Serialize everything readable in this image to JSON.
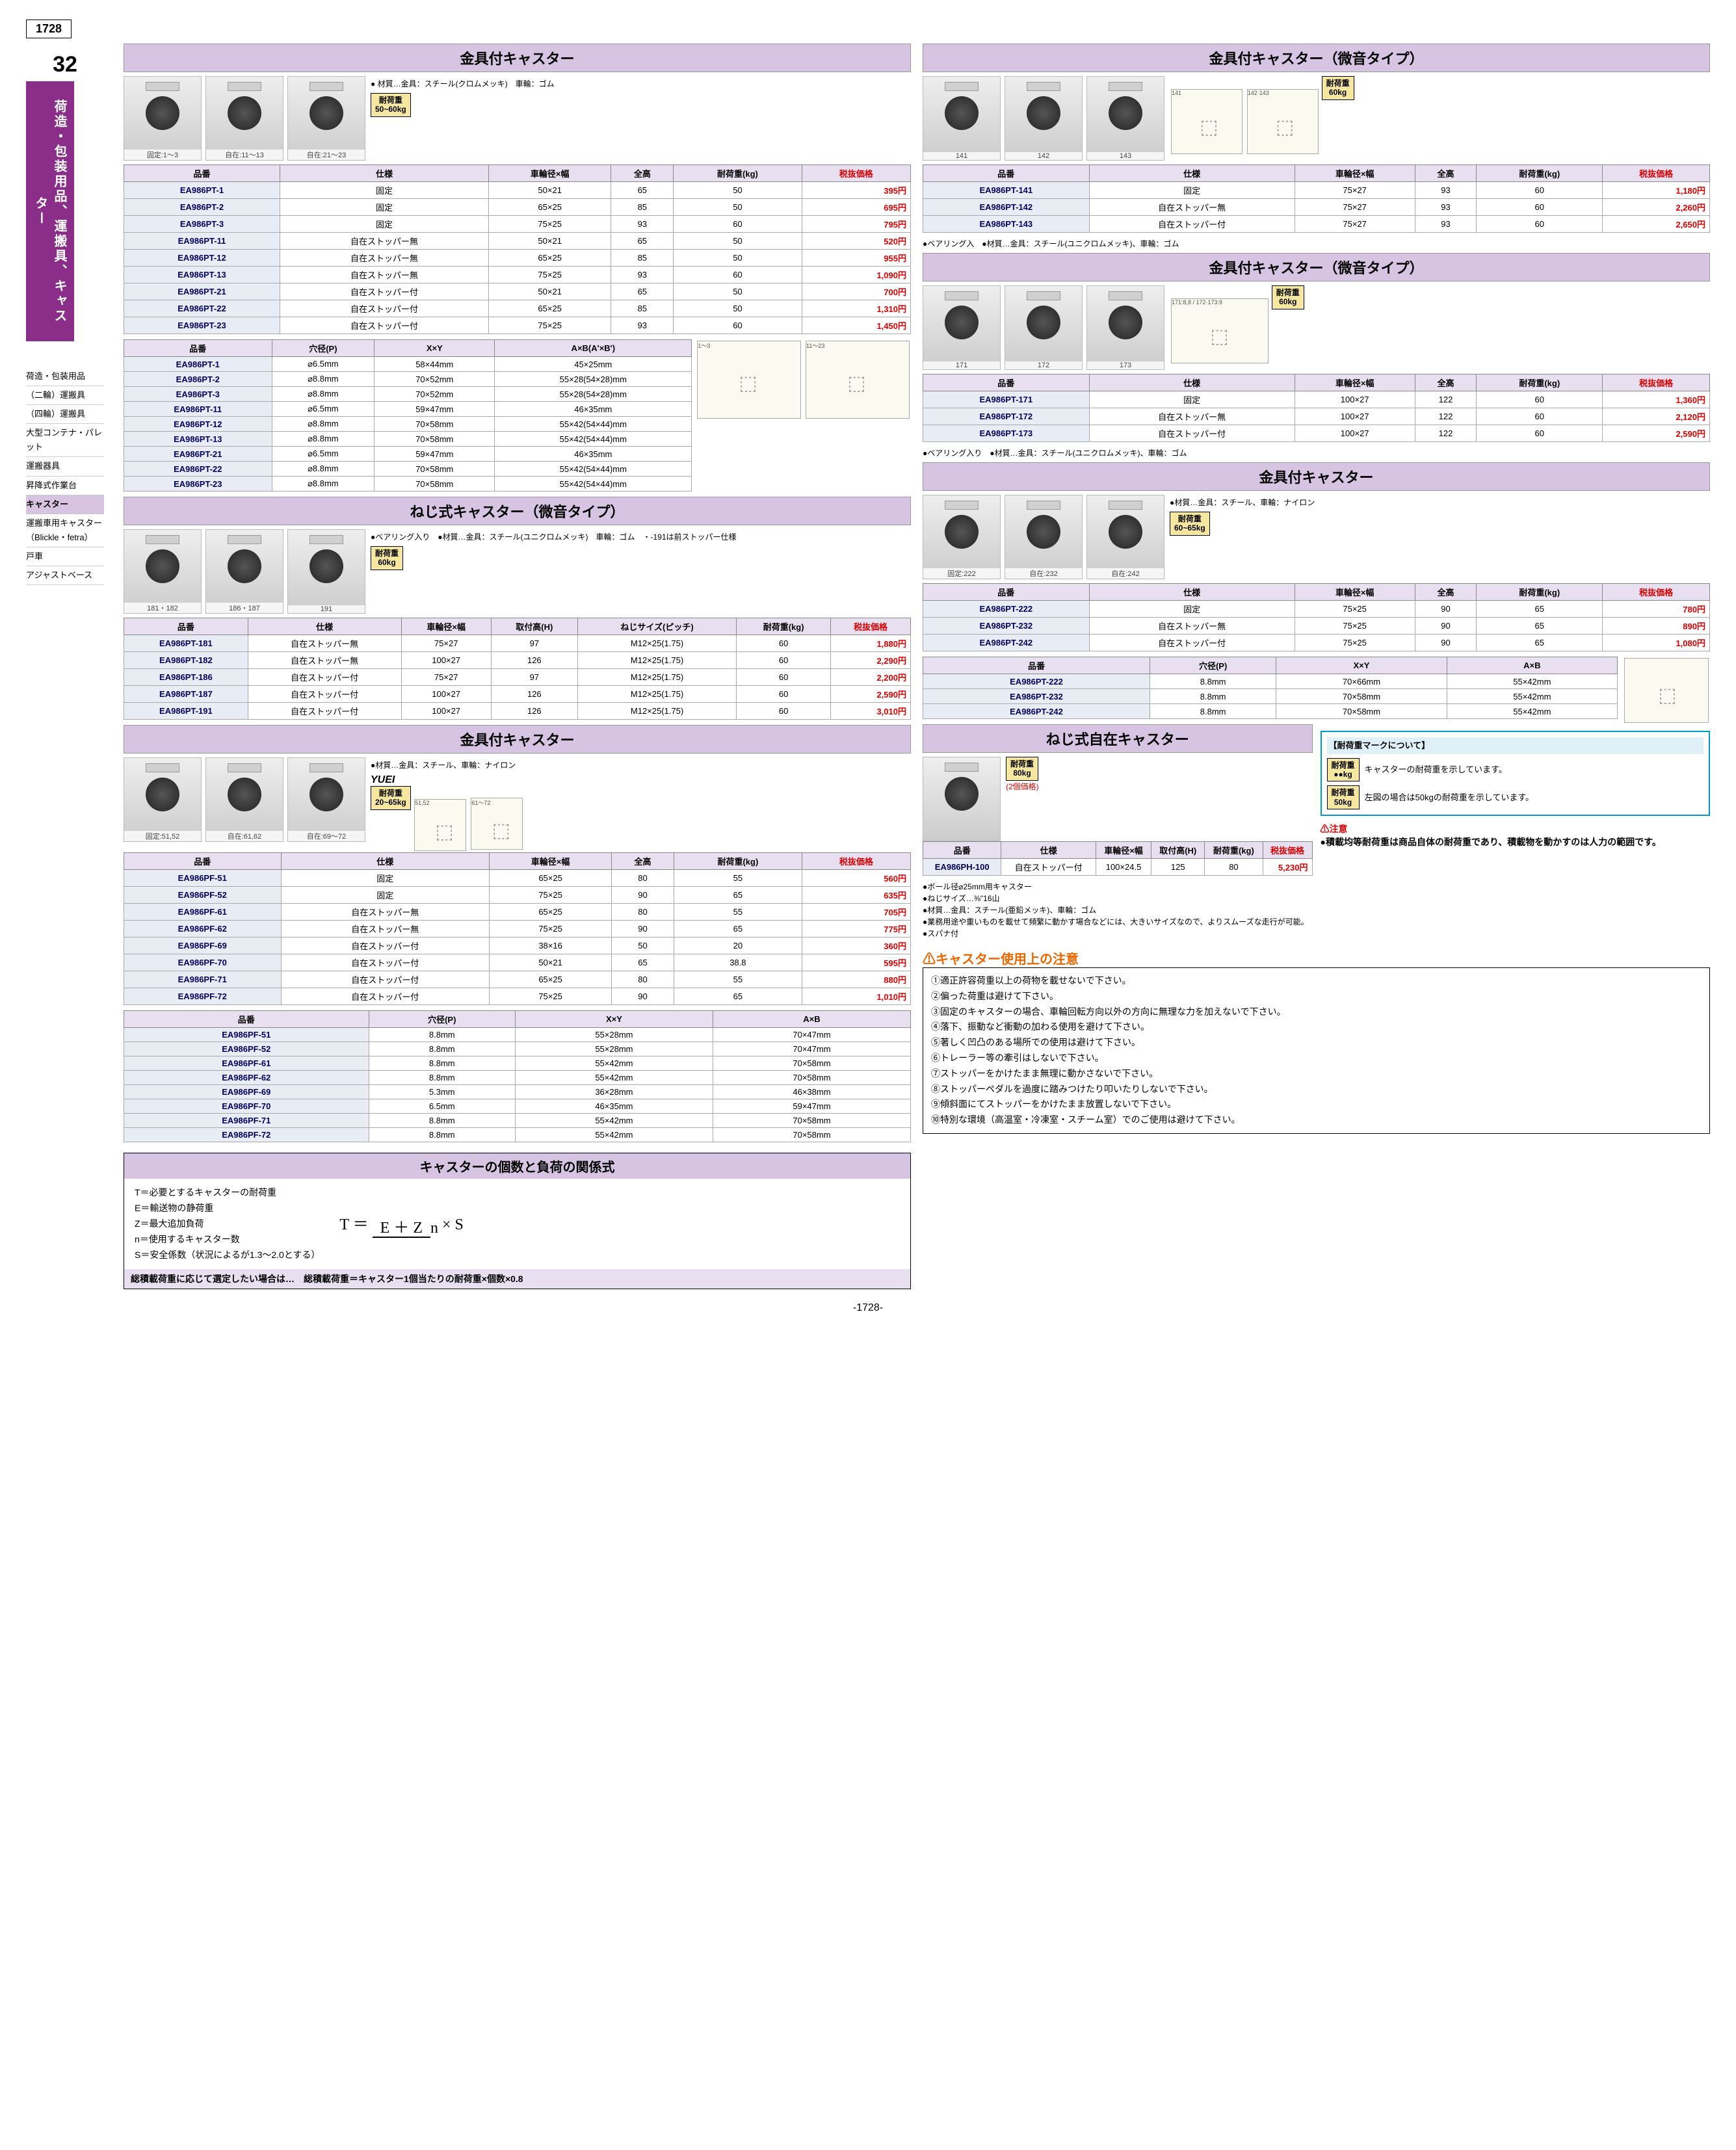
{
  "pageNumber": "1728",
  "chapter": "32",
  "verticalLabel": "荷造・包装用品、運搬具、キャスター",
  "sideNav": [
    "荷造・包装用品",
    "（二輪）運搬具",
    "（四輪）運搬具",
    "大型コンテナ・パレット",
    "運搬器具",
    "昇降式作業台",
    "キャスター",
    "運搬車用キャスター（Blickle・fetra）",
    "戸車",
    "アジャストベース"
  ],
  "sideNavActive": 6,
  "sec1": {
    "title": "金具付キャスター",
    "imgs": [
      "固定:1～3",
      "自在:11～13",
      "自在:21～23"
    ],
    "loadBadge": "耐荷重\n50~60kg",
    "matNote": "● 材質…金具：スチール(クロムメッキ)　車輪：ゴム",
    "headers": [
      "品番",
      "仕様",
      "車輪径×幅",
      "全高",
      "耐荷重(kg)",
      "税抜価格"
    ],
    "rows": [
      [
        "EA986PT-1",
        "固定",
        "50×21",
        "65",
        "50",
        "395円"
      ],
      [
        "EA986PT-2",
        "固定",
        "65×25",
        "85",
        "50",
        "695円"
      ],
      [
        "EA986PT-3",
        "固定",
        "75×25",
        "93",
        "60",
        "795円"
      ],
      [
        "EA986PT-11",
        "自在ストッパー無",
        "50×21",
        "65",
        "50",
        "520円"
      ],
      [
        "EA986PT-12",
        "自在ストッパー無",
        "65×25",
        "85",
        "50",
        "955円"
      ],
      [
        "EA986PT-13",
        "自在ストッパー無",
        "75×25",
        "93",
        "60",
        "1,090円"
      ],
      [
        "EA986PT-21",
        "自在ストッパー付",
        "50×21",
        "65",
        "50",
        "700円"
      ],
      [
        "EA986PT-22",
        "自在ストッパー付",
        "65×25",
        "85",
        "50",
        "1,310円"
      ],
      [
        "EA986PT-23",
        "自在ストッパー付",
        "75×25",
        "93",
        "60",
        "1,450円"
      ]
    ],
    "sub": {
      "headers": [
        "品番",
        "穴径(P)",
        "X×Y",
        "A×B(A'×B')"
      ],
      "rows": [
        [
          "EA986PT-1",
          "⌀6.5mm",
          "58×44mm",
          "45×25mm"
        ],
        [
          "EA986PT-2",
          "⌀8.8mm",
          "70×52mm",
          "55×28(54×28)mm"
        ],
        [
          "EA986PT-3",
          "⌀8.8mm",
          "70×52mm",
          "55×28(54×28)mm"
        ],
        [
          "EA986PT-11",
          "⌀6.5mm",
          "59×47mm",
          "46×35mm"
        ],
        [
          "EA986PT-12",
          "⌀8.8mm",
          "70×58mm",
          "55×42(54×44)mm"
        ],
        [
          "EA986PT-13",
          "⌀8.8mm",
          "70×58mm",
          "55×42(54×44)mm"
        ],
        [
          "EA986PT-21",
          "⌀6.5mm",
          "59×47mm",
          "46×35mm"
        ],
        [
          "EA986PT-22",
          "⌀8.8mm",
          "70×58mm",
          "55×42(54×44)mm"
        ],
        [
          "EA986PT-23",
          "⌀8.8mm",
          "70×58mm",
          "55×42(54×44)mm"
        ]
      ]
    }
  },
  "sec2": {
    "title": "金具付キャスター（微音タイプ）",
    "imgs": [
      "141",
      "142",
      "143"
    ],
    "loadBadge": "耐荷重\n60kg",
    "headers": [
      "品番",
      "仕様",
      "車輪径×幅",
      "全高",
      "耐荷重(kg)",
      "税抜価格"
    ],
    "rows": [
      [
        "EA986PT-141",
        "固定",
        "75×27",
        "93",
        "60",
        "1,180円"
      ],
      [
        "EA986PT-142",
        "自在ストッパー無",
        "75×27",
        "93",
        "60",
        "2,260円"
      ],
      [
        "EA986PT-143",
        "自在ストッパー付",
        "75×27",
        "93",
        "60",
        "2,650円"
      ]
    ],
    "note": "●ベアリング入　●材質…金具：スチール(ユニクロムメッキ)、車輪：ゴム"
  },
  "sec3": {
    "title": "金具付キャスター（微音タイプ）",
    "imgs": [
      "171",
      "172",
      "173"
    ],
    "loadBadge": "耐荷重\n60kg",
    "headers": [
      "品番",
      "仕様",
      "車輪径×幅",
      "全高",
      "耐荷重(kg)",
      "税抜価格"
    ],
    "rows": [
      [
        "EA986PT-171",
        "固定",
        "100×27",
        "122",
        "60",
        "1,360円"
      ],
      [
        "EA986PT-172",
        "自在ストッパー無",
        "100×27",
        "122",
        "60",
        "2,120円"
      ],
      [
        "EA986PT-173",
        "自在ストッパー付",
        "100×27",
        "122",
        "60",
        "2,590円"
      ]
    ],
    "note": "●ベアリング入り　●材質…金具：スチール(ユニクロムメッキ)、車輪：ゴム"
  },
  "sec4": {
    "title": "ねじ式キャスター（微音タイプ）",
    "imgs": [
      "181・182",
      "186・187",
      "191"
    ],
    "loadBadge": "耐荷重\n60kg",
    "matNote": "●ベアリング入り　●材質…金具：スチール(ユニクロムメッキ)　車輪：ゴム　・-191は前ストッパー仕様",
    "headers": [
      "品番",
      "仕様",
      "車輪径×幅",
      "取付高(H)",
      "ねじサイズ(ピッチ)",
      "耐荷重(kg)",
      "税抜価格"
    ],
    "rows": [
      [
        "EA986PT-181",
        "自在ストッパー無",
        "75×27",
        "97",
        "M12×25(1.75)",
        "60",
        "1,880円"
      ],
      [
        "EA986PT-182",
        "自在ストッパー無",
        "100×27",
        "126",
        "M12×25(1.75)",
        "60",
        "2,290円"
      ],
      [
        "EA986PT-186",
        "自在ストッパー付",
        "75×27",
        "97",
        "M12×25(1.75)",
        "60",
        "2,200円"
      ],
      [
        "EA986PT-187",
        "自在ストッパー付",
        "100×27",
        "126",
        "M12×25(1.75)",
        "60",
        "2,590円"
      ],
      [
        "EA986PT-191",
        "自在ストッパー付",
        "100×27",
        "126",
        "M12×25(1.75)",
        "60",
        "3,010円"
      ]
    ]
  },
  "sec5": {
    "title": "金具付キャスター",
    "imgs": [
      "固定:222",
      "自在:232",
      "自在:242"
    ],
    "loadBadge": "耐荷重\n60~65kg",
    "matNote": "●材質…金具：スチール、車輪：ナイロン",
    "headers": [
      "品番",
      "仕様",
      "車輪径×幅",
      "全高",
      "耐荷重(kg)",
      "税抜価格"
    ],
    "rows": [
      [
        "EA986PT-222",
        "固定",
        "75×25",
        "90",
        "65",
        "780円"
      ],
      [
        "EA986PT-232",
        "自在ストッパー無",
        "75×25",
        "90",
        "65",
        "890円"
      ],
      [
        "EA986PT-242",
        "自在ストッパー付",
        "75×25",
        "90",
        "65",
        "1,080円"
      ]
    ],
    "sub": {
      "headers": [
        "品番",
        "穴径(P)",
        "X×Y",
        "A×B"
      ],
      "rows": [
        [
          "EA986PT-222",
          "8.8mm",
          "70×66mm",
          "55×42mm"
        ],
        [
          "EA986PT-232",
          "8.8mm",
          "70×58mm",
          "55×42mm"
        ],
        [
          "EA986PT-242",
          "8.8mm",
          "70×58mm",
          "55×42mm"
        ]
      ]
    }
  },
  "sec6": {
    "title": "金具付キャスター",
    "imgs": [
      "固定:51,52",
      "自在:61,62",
      "自在:69～72"
    ],
    "brand": "YUEI",
    "loadBadge": "耐荷重\n20~65kg",
    "matNote": "●材質…金具：スチール、車輪：ナイロン",
    "headers": [
      "品番",
      "仕様",
      "車輪径×幅",
      "全高",
      "耐荷重(kg)",
      "税抜価格"
    ],
    "rows": [
      [
        "EA986PF-51",
        "固定",
        "65×25",
        "80",
        "55",
        "560円"
      ],
      [
        "EA986PF-52",
        "固定",
        "75×25",
        "90",
        "65",
        "635円"
      ],
      [
        "EA986PF-61",
        "自在ストッパー無",
        "65×25",
        "80",
        "55",
        "705円"
      ],
      [
        "EA986PF-62",
        "自在ストッパー無",
        "75×25",
        "90",
        "65",
        "775円"
      ],
      [
        "EA986PF-69",
        "自在ストッパー付",
        "38×16",
        "50",
        "20",
        "360円"
      ],
      [
        "EA986PF-70",
        "自在ストッパー付",
        "50×21",
        "65",
        "38.8",
        "595円"
      ],
      [
        "EA986PF-71",
        "自在ストッパー付",
        "65×25",
        "80",
        "55",
        "880円"
      ],
      [
        "EA986PF-72",
        "自在ストッパー付",
        "75×25",
        "90",
        "65",
        "1,010円"
      ]
    ],
    "sub": {
      "headers": [
        "品番",
        "穴径(P)",
        "X×Y",
        "A×B"
      ],
      "rows": [
        [
          "EA986PF-51",
          "8.8mm",
          "55×28mm",
          "70×47mm"
        ],
        [
          "EA986PF-52",
          "8.8mm",
          "55×28mm",
          "70×47mm"
        ],
        [
          "EA986PF-61",
          "8.8mm",
          "55×42mm",
          "70×58mm"
        ],
        [
          "EA986PF-62",
          "8.8mm",
          "55×42mm",
          "70×58mm"
        ],
        [
          "EA986PF-69",
          "5.3mm",
          "36×28mm",
          "46×38mm"
        ],
        [
          "EA986PF-70",
          "6.5mm",
          "46×35mm",
          "59×47mm"
        ],
        [
          "EA986PF-71",
          "8.8mm",
          "55×42mm",
          "70×58mm"
        ],
        [
          "EA986PF-72",
          "8.8mm",
          "55×42mm",
          "70×58mm"
        ]
      ]
    }
  },
  "sec7": {
    "title": "ねじ式自在キャスター",
    "loadBadge": "耐荷重\n80kg",
    "pairNote": "(2個価格)",
    "headers": [
      "品番",
      "仕様",
      "車輪径×幅",
      "取付高(H)",
      "耐荷重(kg)",
      "税抜価格"
    ],
    "rows": [
      [
        "EA986PH-100",
        "自在ストッパー付",
        "100×24.5",
        "125",
        "80",
        "5,230円"
      ]
    ],
    "notes": [
      "●ボール径⌀25mm用キャスター",
      "●ねじサイズ…⅜\"16山",
      "●材質…金具：スチール(亜鉛メッキ)、車輪：ゴム",
      "●業務用途や重いものを載せて頻繁に動かす場合などには、大きいサイズなので、よりスムーズな走行が可能。",
      "●スパナ付"
    ]
  },
  "loadMark": {
    "title": "【耐荷重マークについて】",
    "body1": "キャスターの耐荷重を示しています。",
    "body2": "左図の場合は50kgの耐荷重を示しています。",
    "badge1": "耐荷重\n●●kg",
    "badge2": "耐荷重\n50kg"
  },
  "caution": {
    "title": "⚠注意",
    "body": "●積載均等耐荷重は商品自体の耐荷重であり、積載物を動かすのは人力の範囲です。"
  },
  "formula": {
    "title": "キャスターの個数と負荷の関係式",
    "defs": [
      "T＝必要とするキャスターの耐荷重",
      "E＝輸送物の静荷重",
      "Z＝最大追加負荷",
      "n＝使用するキャスター数",
      "S＝安全係数（状況によるが1.3～2.0とする）"
    ],
    "eqLeft": "T ＝",
    "eqTop": "E ＋ Z",
    "eqBottom": "n",
    "eqRight": "× S",
    "bottomNote": "総積載荷重に応じて選定したい場合は…　総積載荷重＝キャスター1個当たりの耐荷重×個数×0.8"
  },
  "usage": {
    "title": "⚠キャスター使用上の注意",
    "items": [
      "①適正許容荷重以上の荷物を載せないで下さい。",
      "②偏った荷重は避けて下さい。",
      "③固定のキャスターの場合、車輪回転方向以外の方向に無理な力を加えないで下さい。",
      "④落下、振動など衝動の加わる使用を避けて下さい。",
      "⑤著しく凹凸のある場所での使用は避けて下さい。",
      "⑥トレーラー等の牽引はしないで下さい。",
      "⑦ストッパーをかけたまま無理に動かさないで下さい。",
      "⑧ストッパーペダルを過度に踏みつけたり叩いたりしないで下さい。",
      "⑨傾斜面にてストッパーをかけたまま放置しないで下さい。",
      "⑩特別な環境（高温室・冷凍室・スチーム室）でのご使用は避けて下さい。"
    ]
  }
}
